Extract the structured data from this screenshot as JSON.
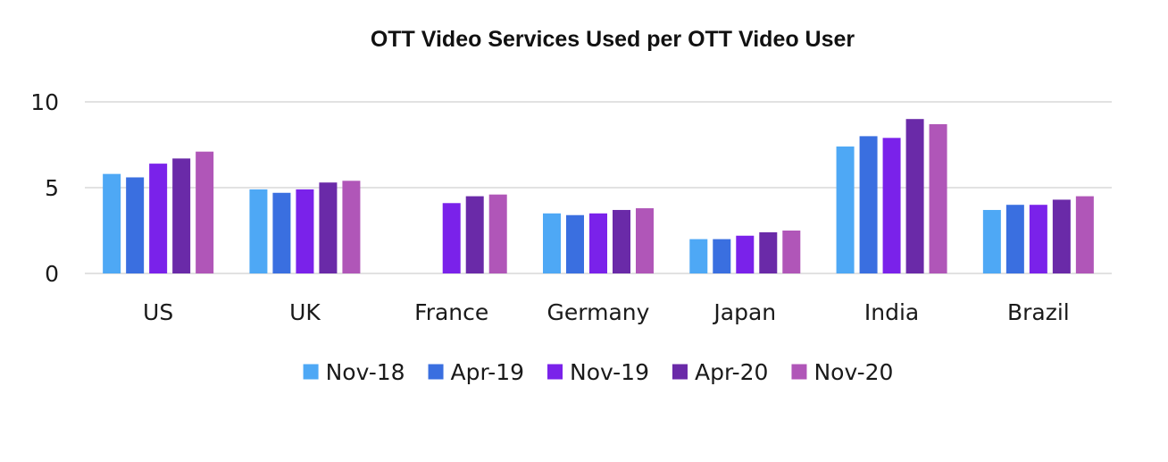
{
  "chart_data": {
    "type": "bar",
    "title": "OTT Video Services Used per OTT Video User",
    "xlabel": "",
    "ylabel": "",
    "ylim": [
      0,
      10
    ],
    "yticks": [
      "0",
      "5",
      "10"
    ],
    "grid": true,
    "legend_position": "bottom",
    "categories": [
      "US",
      "UK",
      "France",
      "Germany",
      "Japan",
      "India",
      "Brazil"
    ],
    "series": [
      {
        "name": "Nov-18",
        "color": "#4ea8f5",
        "values": [
          5.8,
          4.9,
          null,
          3.5,
          2.0,
          7.4,
          3.7
        ]
      },
      {
        "name": "Apr-19",
        "color": "#3a6fe0",
        "values": [
          5.6,
          4.7,
          null,
          3.4,
          2.0,
          8.0,
          4.0
        ]
      },
      {
        "name": "Nov-19",
        "color": "#7a22ea",
        "values": [
          6.4,
          4.9,
          4.1,
          3.5,
          2.2,
          7.9,
          4.0
        ]
      },
      {
        "name": "Apr-20",
        "color": "#6a2aa8",
        "values": [
          6.7,
          5.3,
          4.5,
          3.7,
          2.4,
          9.0,
          4.3
        ]
      },
      {
        "name": "Nov-20",
        "color": "#b056b8",
        "values": [
          7.1,
          5.4,
          4.6,
          3.8,
          2.5,
          8.7,
          4.5
        ]
      }
    ]
  }
}
